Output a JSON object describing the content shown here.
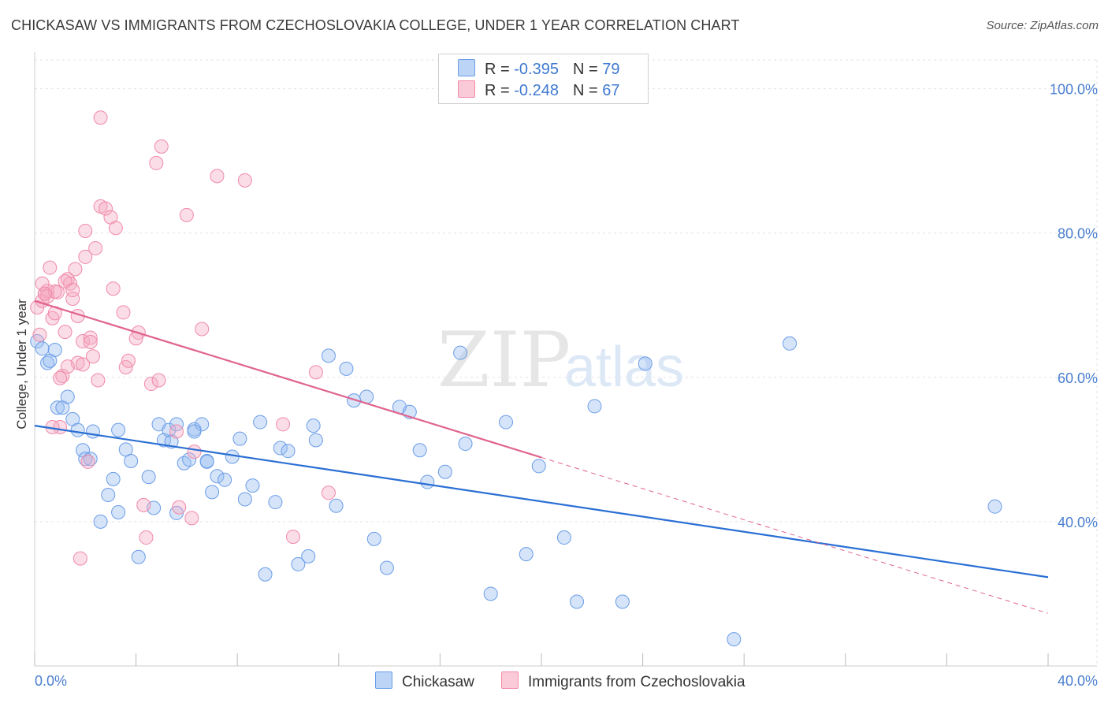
{
  "title": "CHICKASAW VS IMMIGRANTS FROM CZECHOSLOVAKIA COLLEGE, UNDER 1 YEAR CORRELATION CHART",
  "source": "Source: ZipAtlas.com",
  "watermark": {
    "zip": "ZIP",
    "atlas": "atlas"
  },
  "legend": {
    "rows": [
      {
        "r_label": "R = ",
        "r_value": "-0.395",
        "n_label": "N = ",
        "n_value": "79"
      },
      {
        "r_label": "R = ",
        "r_value": "-0.248",
        "n_label": "N = ",
        "n_value": "67"
      }
    ]
  },
  "bottom_legend": [
    "Chickasaw",
    "Immigrants from Czechoslovakia"
  ],
  "chart_data": {
    "type": "scatter",
    "title": "CHICKASAW VS IMMIGRANTS FROM CZECHOSLOVAKIA COLLEGE, UNDER 1 YEAR CORRELATION CHART",
    "xlabel": "",
    "ylabel": "College, Under 1 year",
    "xlim": [
      0,
      40
    ],
    "ylim": [
      20,
      104
    ],
    "x_tick_labels": [
      "0.0%",
      "40.0%"
    ],
    "y_ticks": [
      40,
      60,
      80,
      100
    ],
    "y_tick_labels": [
      "40.0%",
      "60.0%",
      "80.0%",
      "100.0%"
    ],
    "grid": true,
    "colors": {
      "chickasaw": "#6b9de8",
      "chickasaw_line": "#2a6fd4",
      "czech": "#f08aa8",
      "czech_line": "#e0648e"
    },
    "series": [
      {
        "name": "Chickasaw",
        "x": [
          0.1,
          0.3,
          0.5,
          0.6,
          0.8,
          0.9,
          1.1,
          1.3,
          1.5,
          1.7,
          1.9,
          2.0,
          2.2,
          2.3,
          2.6,
          2.9,
          3.1,
          3.3,
          3.6,
          3.8,
          4.1,
          4.5,
          4.7,
          4.9,
          5.1,
          5.3,
          5.4,
          5.6,
          5.9,
          6.1,
          6.3,
          6.6,
          6.8,
          7.0,
          7.2,
          7.5,
          7.8,
          8.1,
          8.3,
          8.6,
          8.9,
          9.1,
          9.5,
          9.7,
          10.0,
          10.4,
          10.8,
          11.1,
          11.6,
          11.9,
          12.3,
          12.6,
          13.1,
          13.4,
          13.9,
          14.4,
          14.8,
          15.2,
          15.5,
          16.2,
          16.8,
          17.0,
          18.0,
          18.6,
          19.4,
          19.9,
          20.9,
          21.4,
          22.1,
          23.2,
          24.1,
          27.6,
          29.8,
          37.9,
          6.3,
          5.6,
          3.3,
          6.8,
          11.0
        ],
        "y": [
          65.0,
          64.0,
          62.0,
          62.3,
          63.8,
          55.8,
          55.8,
          57.3,
          54.2,
          52.7,
          49.9,
          48.7,
          48.7,
          52.5,
          40.0,
          43.7,
          45.9,
          41.3,
          50.0,
          48.4,
          35.1,
          46.2,
          41.9,
          53.5,
          51.3,
          52.7,
          51.1,
          41.2,
          48.1,
          48.6,
          52.8,
          53.5,
          48.4,
          44.1,
          46.3,
          45.8,
          49.0,
          51.5,
          43.1,
          45.0,
          53.8,
          32.7,
          42.7,
          50.2,
          49.8,
          34.1,
          35.2,
          51.3,
          63.0,
          42.2,
          61.2,
          56.8,
          57.3,
          37.6,
          33.6,
          55.9,
          55.2,
          49.9,
          45.5,
          46.9,
          63.4,
          50.8,
          30.0,
          53.8,
          35.5,
          47.7,
          37.8,
          28.9,
          56.0,
          28.9,
          61.9,
          23.7,
          64.7,
          42.1,
          52.5,
          53.5,
          52.7,
          48.3,
          53.3
        ]
      },
      {
        "name": "Immigrants from Czechoslovakia",
        "x": [
          0.1,
          0.2,
          0.3,
          0.4,
          0.5,
          0.6,
          0.7,
          0.8,
          0.9,
          1.0,
          1.1,
          1.2,
          1.3,
          1.4,
          1.5,
          1.6,
          1.7,
          1.8,
          1.9,
          2.0,
          2.1,
          2.2,
          2.3,
          2.4,
          2.6,
          2.8,
          3.0,
          3.2,
          3.6,
          3.7,
          4.1,
          4.4,
          4.6,
          4.8,
          5.0,
          5.7,
          6.0,
          6.3,
          6.6,
          7.2,
          8.3,
          9.8,
          10.2,
          11.1,
          11.6,
          0.3,
          0.5,
          0.8,
          1.0,
          1.2,
          1.5,
          1.9,
          2.2,
          2.5,
          0.4,
          0.7,
          1.3,
          1.7,
          2.0,
          2.6,
          3.1,
          3.5,
          4.0,
          4.3,
          4.9,
          5.6,
          6.2
        ],
        "y": [
          69.7,
          65.9,
          70.6,
          71.6,
          72.0,
          75.2,
          68.2,
          68.9,
          71.8,
          53.1,
          60.2,
          66.3,
          73.6,
          73.0,
          70.9,
          75.0,
          62.0,
          34.9,
          65.0,
          80.3,
          48.3,
          65.5,
          62.9,
          77.9,
          83.7,
          83.4,
          82.2,
          80.7,
          61.4,
          62.3,
          66.2,
          37.8,
          59.1,
          89.7,
          92.0,
          42.0,
          82.5,
          49.7,
          66.7,
          87.9,
          87.3,
          53.5,
          37.9,
          60.7,
          44.0,
          73.0,
          71.2,
          71.9,
          59.9,
          73.3,
          72.1,
          61.8,
          64.9,
          59.6,
          71.6,
          53.1,
          61.5,
          68.5,
          76.7,
          96.0,
          72.3,
          69.0,
          65.4,
          42.3,
          59.6,
          52.5,
          40.5
        ]
      }
    ],
    "trend_lines": [
      {
        "name": "Chickasaw",
        "x0": 0,
        "y0": 53.3,
        "x1": 40,
        "y1": 32.3
      },
      {
        "name": "Immigrants from Czechoslovakia",
        "x0": 0,
        "y0": 70.6,
        "x1": 20,
        "y1": 48.9,
        "dashed_to_x": 40,
        "dashed_to_y": 27.3
      }
    ]
  }
}
